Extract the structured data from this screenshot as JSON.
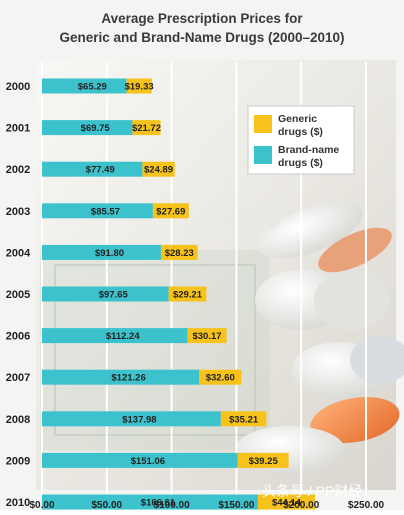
{
  "chart_data": {
    "type": "bar",
    "orientation": "horizontal",
    "title": "Average Prescription Prices for",
    "subtitle": "Generic and Brand-Name Drugs (2000–2010)",
    "categories": [
      "2000",
      "2001",
      "2002",
      "2003",
      "2004",
      "2005",
      "2006",
      "2007",
      "2008",
      "2009",
      "2010"
    ],
    "series": [
      {
        "name": "Brand-name drugs ($)",
        "color": "#3cc2cc",
        "values": [
          65.29,
          69.75,
          77.49,
          85.57,
          91.8,
          97.65,
          112.24,
          121.26,
          137.98,
          151.06,
          166.61
        ],
        "labels": [
          "$65.29",
          "$69.75",
          "$77.49",
          "$85.57",
          "$91.80",
          "$97.65",
          "$112.24",
          "$121.26",
          "$137.98",
          "$151.06",
          "$166.61"
        ]
      },
      {
        "name": "Generic drugs ($)",
        "color": "#f7c21b",
        "values": [
          19.33,
          21.72,
          24.89,
          27.69,
          28.23,
          29.21,
          30.17,
          32.6,
          35.21,
          39.25,
          44.14
        ],
        "labels": [
          "$19.33",
          "$21.72",
          "$24.89",
          "$27.69",
          "$28.23",
          "$29.21",
          "$30.17",
          "$32.60",
          "$35.21",
          "$39.25",
          "$44.14"
        ]
      }
    ],
    "stacked": true,
    "xlim": [
      0,
      250
    ],
    "xticks": [
      "$0.00",
      "$50.00",
      "$100.00",
      "$150.00",
      "$200.00",
      "$250.00"
    ],
    "grid": true,
    "legend_position": "top-right",
    "legend": [
      "Generic drugs ($)",
      "Brand-name drugs ($)"
    ]
  },
  "watermark": "头条号 / PP财经"
}
